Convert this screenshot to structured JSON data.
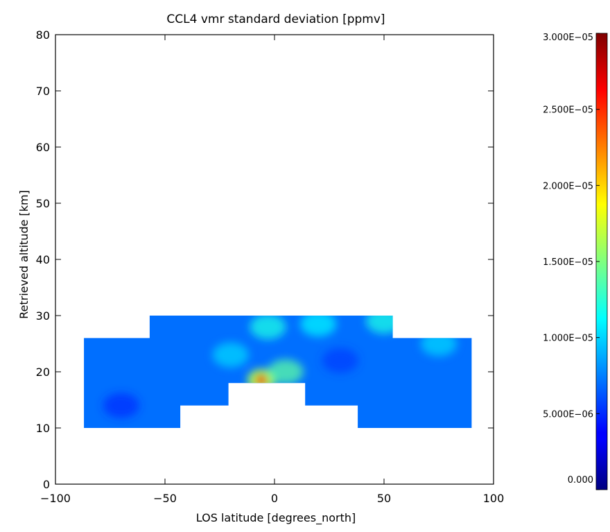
{
  "chart_data": {
    "type": "heatmap",
    "title": "CCL4 vmr standard deviation [ppmv]",
    "xlabel": "LOS latitude [degrees_north]",
    "ylabel": "Retrieved altitude [km]",
    "xlim": [
      -100,
      100
    ],
    "ylim": [
      0,
      80
    ],
    "x_ticks": [
      -100,
      -50,
      0,
      50,
      100
    ],
    "x_tick_labels": [
      "−100",
      "−50",
      "0",
      "50",
      "100"
    ],
    "y_ticks": [
      0,
      10,
      20,
      30,
      40,
      50,
      60,
      70,
      80
    ],
    "y_tick_labels": [
      "0",
      "10",
      "20",
      "30",
      "40",
      "50",
      "60",
      "70",
      "80"
    ],
    "colorbar": {
      "min": 0,
      "max": 3e-05,
      "colormap": "jet",
      "ticks": [
        0,
        5e-06,
        1e-05,
        1.5e-05,
        2e-05,
        2.5e-05,
        3e-05
      ],
      "tick_labels": [
        "0.000",
        "5.000E−06",
        "1.000E−05",
        "1.500E−05",
        "2.000E−05",
        "2.500E−05",
        "3.000E−05"
      ]
    },
    "data_region_outline": [
      [
        -87,
        10
      ],
      [
        -43,
        10
      ],
      [
        -43,
        14
      ],
      [
        -21,
        14
      ],
      [
        -21,
        18
      ],
      [
        14,
        18
      ],
      [
        14,
        14
      ],
      [
        38,
        14
      ],
      [
        38,
        10
      ],
      [
        90,
        10
      ],
      [
        90,
        26
      ],
      [
        54,
        26
      ],
      [
        54,
        30
      ],
      [
        -57,
        30
      ],
      [
        -57,
        26
      ],
      [
        -87,
        26
      ]
    ],
    "background_value": 7e-06,
    "features": [
      {
        "lat": -6,
        "alt": 18.5,
        "value": 2.7e-05
      },
      {
        "lat": 5,
        "alt": 20,
        "value": 1.4e-05
      },
      {
        "lat": -3,
        "alt": 28,
        "value": 1.2e-05
      },
      {
        "lat": 20,
        "alt": 28.5,
        "value": 1.1e-05
      },
      {
        "lat": 50,
        "alt": 29,
        "value": 1.2e-05
      },
      {
        "lat": 75,
        "alt": 25,
        "value": 1e-05
      },
      {
        "lat": -70,
        "alt": 14,
        "value": 5e-06
      },
      {
        "lat": -20,
        "alt": 23,
        "value": 1e-05
      },
      {
        "lat": 30,
        "alt": 22,
        "value": 5.5e-06
      }
    ]
  }
}
